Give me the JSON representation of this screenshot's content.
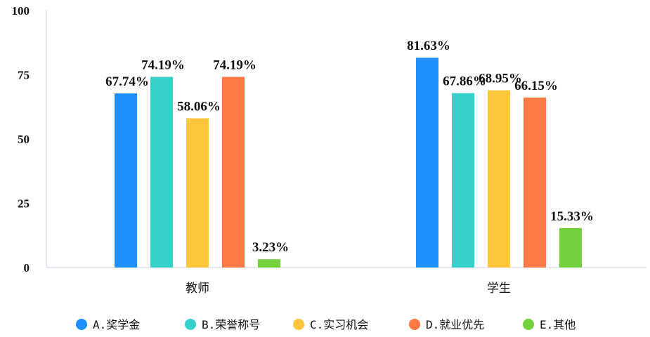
{
  "chart_data": {
    "type": "bar",
    "title": "",
    "xlabel": "",
    "ylabel": "",
    "categories": [
      "教师",
      "学生"
    ],
    "ylim": [
      0,
      100
    ],
    "yticks": [
      0,
      25,
      50,
      75,
      100
    ],
    "grid": false,
    "legend_position": "bottom",
    "series": [
      {
        "name": "A.奖学金",
        "color": "#1E90FF",
        "values": [
          67.74,
          81.63
        ],
        "labels": [
          "67.74%",
          "81.63%"
        ]
      },
      {
        "name": "B.荣誉称号",
        "color": "#36CFC9",
        "values": [
          74.19,
          67.86
        ],
        "labels": [
          "74.19%",
          "67.86%"
        ]
      },
      {
        "name": "C.实习机会",
        "color": "#FFC53D",
        "values": [
          58.06,
          68.95
        ],
        "labels": [
          "58.06%",
          "68.95%"
        ]
      },
      {
        "name": "D.就业优先",
        "color": "#FF7A45",
        "values": [
          74.19,
          66.15
        ],
        "labels": [
          "74.19%",
          "66.15%"
        ]
      },
      {
        "name": "E.其他",
        "color": "#73D13D",
        "values": [
          3.23,
          15.33
        ],
        "labels": [
          "3.23%",
          "15.33%"
        ]
      }
    ]
  }
}
